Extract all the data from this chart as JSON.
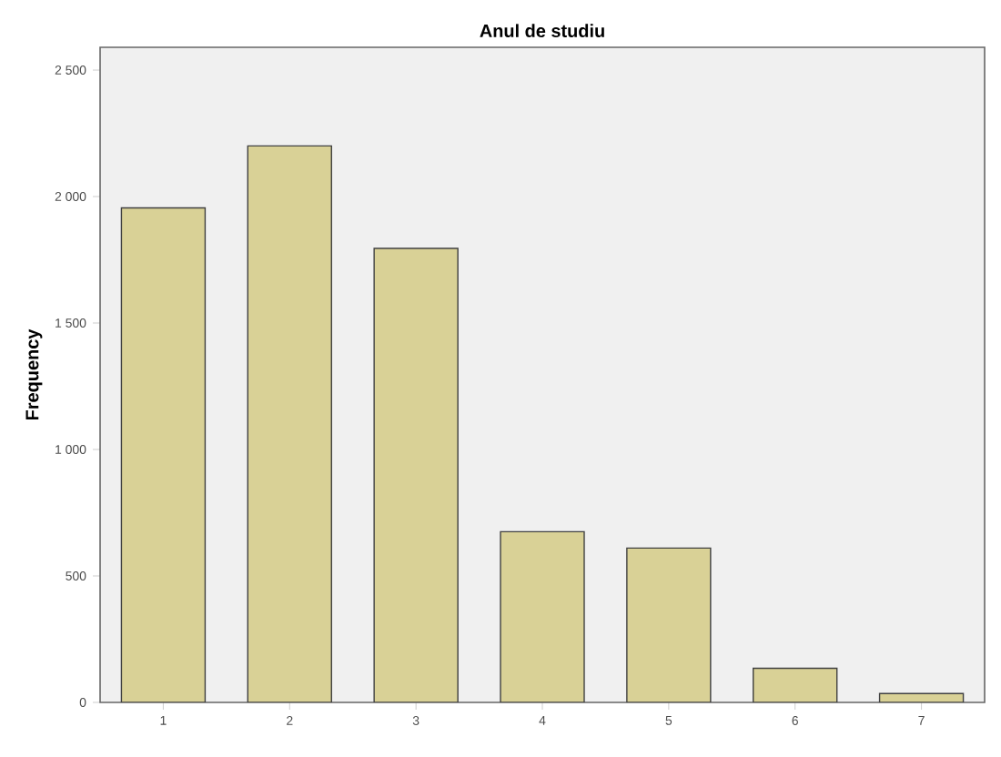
{
  "chart_data": {
    "type": "bar",
    "title": "Anul de studiu",
    "ylabel": "Frequency",
    "categories": [
      "1",
      "2",
      "3",
      "4",
      "5",
      "6",
      "7"
    ],
    "values": [
      1955,
      2200,
      1795,
      675,
      610,
      135,
      35
    ],
    "color": "#d9d196",
    "ylim": [
      0,
      2590
    ],
    "yticks": [
      0,
      500,
      {
        "value": 1000,
        "label": "1 000"
      },
      {
        "value": 1500,
        "label": "1 500"
      },
      {
        "value": 2000,
        "label": "2 000"
      },
      {
        "value": 2500,
        "label": "2 500"
      }
    ]
  }
}
